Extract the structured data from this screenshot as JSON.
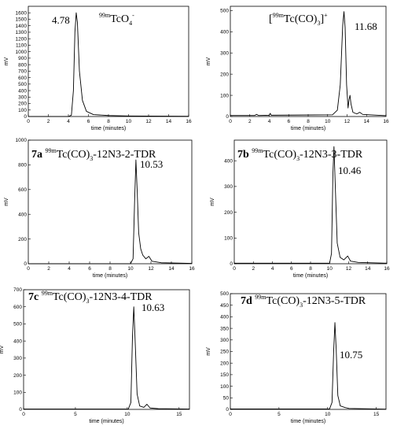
{
  "chart_data": [
    {
      "type": "line",
      "title_parts": [
        {
          "t": "99m",
          "s": "sup"
        },
        {
          "t": "TcO"
        },
        {
          "t": "4",
          "s": "sub"
        },
        {
          "t": "-",
          "s": "sup"
        }
      ],
      "xlabel": "time (minutes)",
      "ylabel": "mV",
      "xlim": [
        0,
        16
      ],
      "ylim": [
        0,
        1700
      ],
      "xticks": [
        0,
        2,
        4,
        6,
        8,
        10,
        12,
        14,
        16
      ],
      "yticks": [
        0,
        100,
        200,
        300,
        400,
        500,
        600,
        700,
        800,
        900,
        1000,
        1100,
        1200,
        1300,
        1400,
        1500,
        1600
      ],
      "peak_label": "4.78",
      "points": [
        [
          0,
          0
        ],
        [
          4.0,
          0
        ],
        [
          4.3,
          20
        ],
        [
          4.5,
          400
        ],
        [
          4.65,
          1300
        ],
        [
          4.78,
          1600
        ],
        [
          4.9,
          1450
        ],
        [
          5.1,
          700
        ],
        [
          5.4,
          250
        ],
        [
          5.8,
          80
        ],
        [
          6.5,
          30
        ],
        [
          8,
          15
        ],
        [
          10,
          8
        ],
        [
          16,
          3
        ]
      ]
    },
    {
      "type": "line",
      "title_parts": [
        {
          "t": "["
        },
        {
          "t": "99m",
          "s": "sup"
        },
        {
          "t": "Tc(CO)"
        },
        {
          "t": "3",
          "s": "sub"
        },
        {
          "t": "]"
        },
        {
          "t": "+",
          "s": "sup"
        }
      ],
      "xlabel": "time (minutes)",
      "ylabel": "mV",
      "xlim": [
        0,
        16
      ],
      "ylim": [
        0,
        520
      ],
      "xticks": [
        0,
        2,
        4,
        6,
        8,
        10,
        12,
        14,
        16
      ],
      "yticks": [
        0,
        100,
        200,
        300,
        400,
        500
      ],
      "peak_label": "11.68",
      "points": [
        [
          0,
          5
        ],
        [
          2.5,
          5
        ],
        [
          2.7,
          10
        ],
        [
          2.9,
          5
        ],
        [
          4,
          6
        ],
        [
          4.1,
          15
        ],
        [
          4.2,
          6
        ],
        [
          10.5,
          8
        ],
        [
          11.0,
          30
        ],
        [
          11.3,
          150
        ],
        [
          11.55,
          430
        ],
        [
          11.68,
          495
        ],
        [
          11.8,
          420
        ],
        [
          11.95,
          150
        ],
        [
          12.1,
          40
        ],
        [
          12.2,
          80
        ],
        [
          12.3,
          100
        ],
        [
          12.4,
          60
        ],
        [
          12.6,
          20
        ],
        [
          13.0,
          12
        ],
        [
          13.3,
          20
        ],
        [
          13.6,
          10
        ],
        [
          16,
          4
        ]
      ]
    },
    {
      "type": "line",
      "title_parts": [
        {
          "t": "7a ",
          "s": "tag"
        },
        {
          "t": "99m",
          "s": "sup"
        },
        {
          "t": "Tc(CO)"
        },
        {
          "t": "3",
          "s": "sub"
        },
        {
          "t": "-12N3-2-TDR"
        }
      ],
      "xlabel": "time (minutes)",
      "ylabel": "mV",
      "xlim": [
        0,
        16
      ],
      "ylim": [
        0,
        1000
      ],
      "xticks": [
        0,
        2,
        4,
        6,
        8,
        10,
        12,
        14,
        16
      ],
      "yticks": [
        0,
        200,
        400,
        600,
        800,
        1000
      ],
      "peak_label": "10.53",
      "points": [
        [
          0,
          0
        ],
        [
          10.0,
          0
        ],
        [
          10.25,
          40
        ],
        [
          10.4,
          500
        ],
        [
          10.53,
          840
        ],
        [
          10.65,
          600
        ],
        [
          10.8,
          250
        ],
        [
          11.0,
          120
        ],
        [
          11.2,
          70
        ],
        [
          11.5,
          40
        ],
        [
          11.8,
          60
        ],
        [
          12.1,
          20
        ],
        [
          13,
          8
        ],
        [
          16,
          3
        ]
      ]
    },
    {
      "type": "line",
      "title_parts": [
        {
          "t": "7b ",
          "s": "tag"
        },
        {
          "t": "99m",
          "s": "sup"
        },
        {
          "t": "Tc(CO)"
        },
        {
          "t": "3",
          "s": "sub"
        },
        {
          "t": "-12N3-3-TDR"
        }
      ],
      "xlabel": "time (minutes)",
      "ylabel": "mV",
      "xlim": [
        0,
        16
      ],
      "ylim": [
        0,
        480
      ],
      "xticks": [
        0,
        2,
        4,
        6,
        8,
        10,
        12,
        14,
        16
      ],
      "yticks": [
        0,
        100,
        200,
        300,
        400
      ],
      "peak_label": "10.46",
      "points": [
        [
          0,
          2
        ],
        [
          10.0,
          2
        ],
        [
          10.2,
          40
        ],
        [
          10.35,
          350
        ],
        [
          10.46,
          455
        ],
        [
          10.6,
          300
        ],
        [
          10.8,
          80
        ],
        [
          11.1,
          25
        ],
        [
          11.5,
          15
        ],
        [
          11.9,
          30
        ],
        [
          12.2,
          10
        ],
        [
          13,
          5
        ],
        [
          16,
          2
        ]
      ]
    },
    {
      "type": "line",
      "title_parts": [
        {
          "t": "7c ",
          "s": "tag"
        },
        {
          "t": "99m",
          "s": "sup"
        },
        {
          "t": "Tc(CO)"
        },
        {
          "t": "3",
          "s": "sub"
        },
        {
          "t": "-12N3-4-TDR"
        }
      ],
      "xlabel": "time (minutes)",
      "ylabel": "mV",
      "xlim": [
        0,
        16
      ],
      "ylim": [
        0,
        700
      ],
      "xticks": [
        0,
        5,
        10,
        15
      ],
      "yticks": [
        0,
        100,
        200,
        300,
        400,
        500,
        600,
        700
      ],
      "peak_label": "10.63",
      "points": [
        [
          0,
          2
        ],
        [
          10.1,
          2
        ],
        [
          10.35,
          40
        ],
        [
          10.5,
          420
        ],
        [
          10.63,
          600
        ],
        [
          10.75,
          420
        ],
        [
          10.95,
          90
        ],
        [
          11.2,
          20
        ],
        [
          11.6,
          12
        ],
        [
          11.9,
          30
        ],
        [
          12.2,
          8
        ],
        [
          13,
          4
        ],
        [
          16,
          2
        ]
      ]
    },
    {
      "type": "line",
      "title_parts": [
        {
          "t": "7d ",
          "s": "tag"
        },
        {
          "t": "99m",
          "s": "sup"
        },
        {
          "t": "Tc(CO)"
        },
        {
          "t": "3",
          "s": "sub"
        },
        {
          "t": "-12N3-5-TDR"
        }
      ],
      "xlabel": "time (minutes)",
      "ylabel": "mV",
      "xlim": [
        0,
        16
      ],
      "ylim": [
        0,
        500
      ],
      "xticks": [
        0,
        5,
        10,
        15
      ],
      "yticks": [
        0,
        50,
        100,
        150,
        200,
        250,
        300,
        350,
        400,
        450,
        500
      ],
      "peak_label": "10.75",
      "points": [
        [
          0,
          2
        ],
        [
          10.2,
          2
        ],
        [
          10.45,
          30
        ],
        [
          10.62,
          250
        ],
        [
          10.75,
          375
        ],
        [
          10.88,
          260
        ],
        [
          11.05,
          60
        ],
        [
          11.3,
          15
        ],
        [
          11.8,
          8
        ],
        [
          12.2,
          4
        ],
        [
          16,
          1
        ]
      ]
    }
  ]
}
